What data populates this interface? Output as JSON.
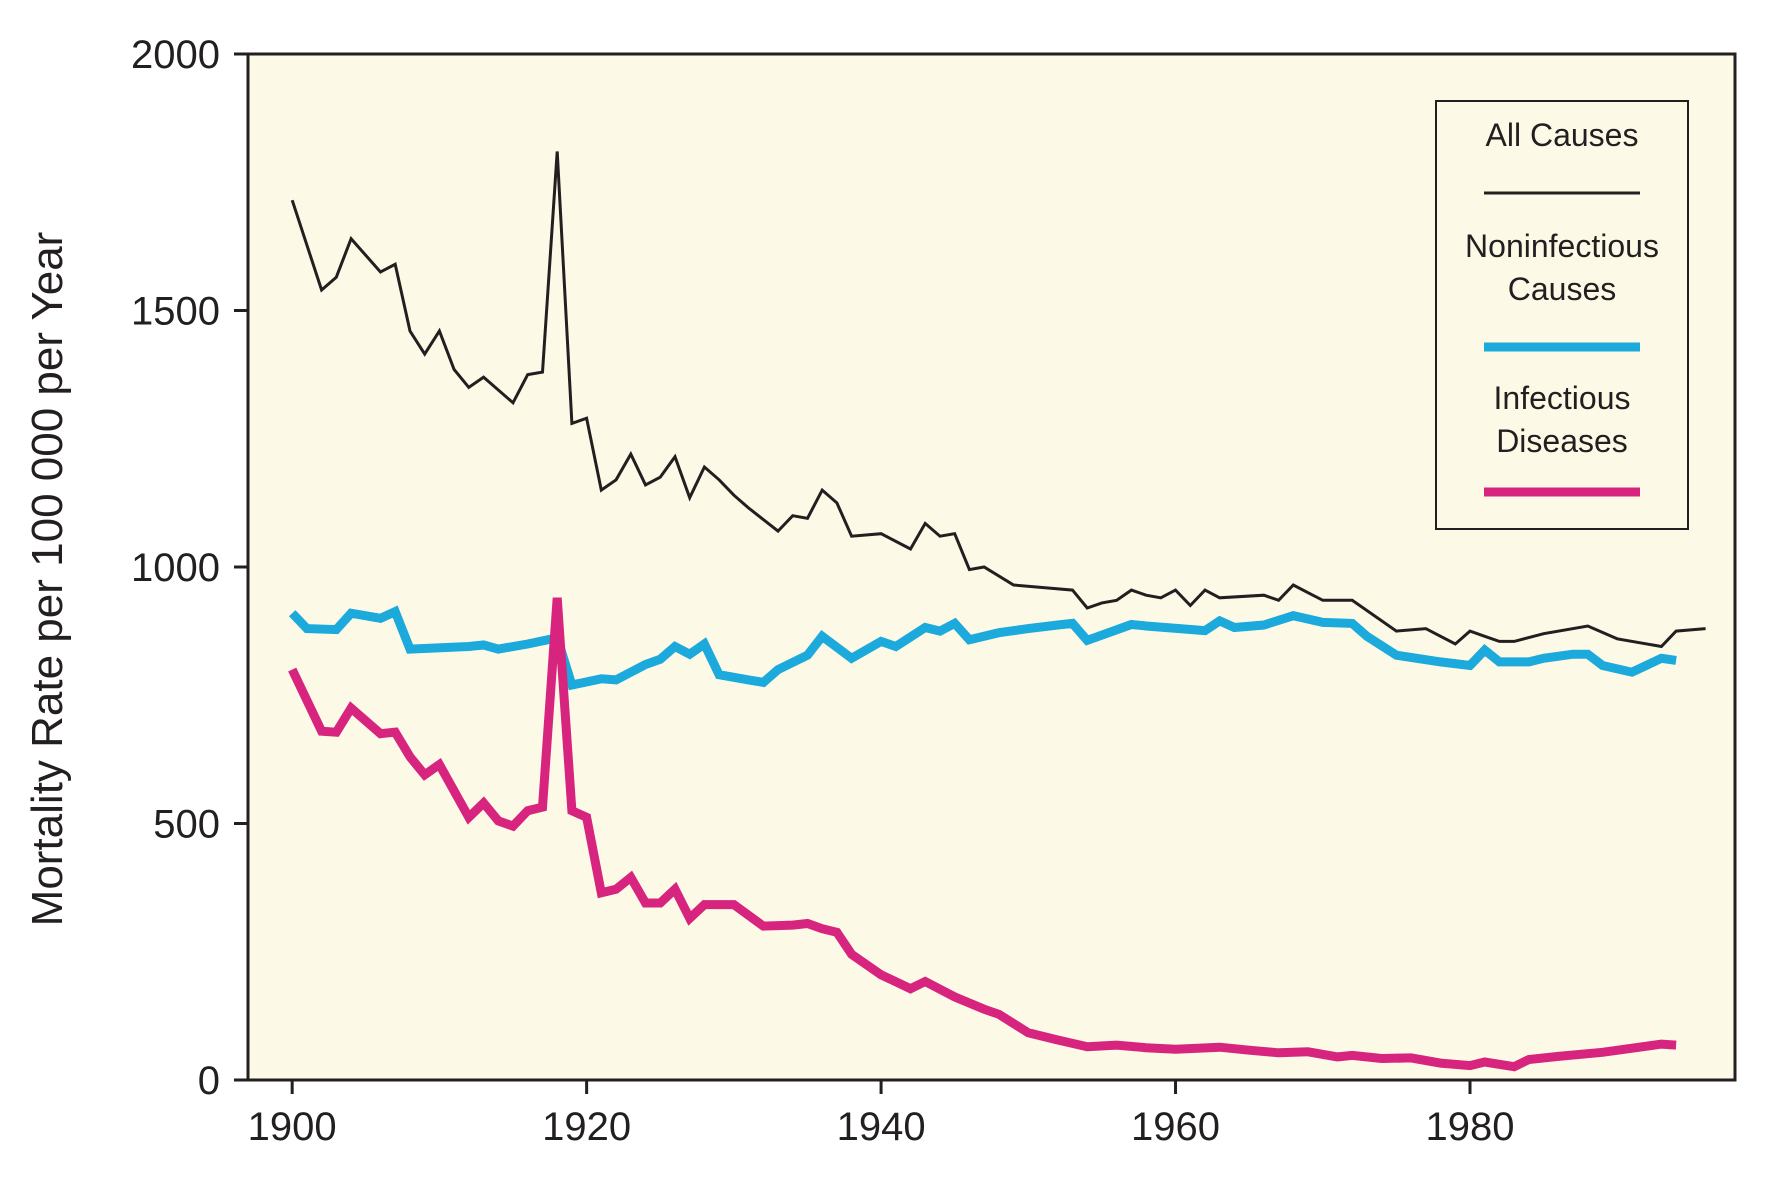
{
  "chart_data": {
    "type": "line",
    "title": "",
    "xlabel": "",
    "ylabel": "Mortality Rate per 100 000 per Year",
    "xlim": [
      1897,
      1998
    ],
    "ylim": [
      0,
      2000
    ],
    "xticks": [
      1900,
      1920,
      1940,
      1960,
      1980
    ],
    "yticks": [
      0,
      500,
      1000,
      1500,
      2000
    ],
    "background_color": "#fcfae6",
    "grid": false,
    "legend_placement": "top-right",
    "series": [
      {
        "name": "All Causes",
        "color": "#231f20",
        "points": [
          [
            1900,
            1715
          ],
          [
            1902,
            1540
          ],
          [
            1903,
            1565
          ],
          [
            1904,
            1640
          ],
          [
            1906,
            1575
          ],
          [
            1907,
            1590
          ],
          [
            1908,
            1460
          ],
          [
            1909,
            1415
          ],
          [
            1910,
            1460
          ],
          [
            1911,
            1385
          ],
          [
            1912,
            1350
          ],
          [
            1913,
            1370
          ],
          [
            1915,
            1320
          ],
          [
            1916,
            1375
          ],
          [
            1917,
            1380
          ],
          [
            1918,
            1810
          ],
          [
            1919,
            1280
          ],
          [
            1920,
            1290
          ],
          [
            1921,
            1150
          ],
          [
            1922,
            1170
          ],
          [
            1923,
            1220
          ],
          [
            1924,
            1160
          ],
          [
            1925,
            1175
          ],
          [
            1926,
            1215
          ],
          [
            1927,
            1135
          ],
          [
            1928,
            1195
          ],
          [
            1929,
            1170
          ],
          [
            1930,
            1140
          ],
          [
            1931,
            1115
          ],
          [
            1933,
            1070
          ],
          [
            1934,
            1100
          ],
          [
            1935,
            1095
          ],
          [
            1936,
            1150
          ],
          [
            1937,
            1125
          ],
          [
            1938,
            1060
          ],
          [
            1940,
            1065
          ],
          [
            1942,
            1035
          ],
          [
            1943,
            1085
          ],
          [
            1944,
            1060
          ],
          [
            1945,
            1065
          ],
          [
            1946,
            995
          ],
          [
            1947,
            1000
          ],
          [
            1949,
            965
          ],
          [
            1953,
            955
          ],
          [
            1954,
            920
          ],
          [
            1955,
            930
          ],
          [
            1956,
            935
          ],
          [
            1957,
            955
          ],
          [
            1958,
            945
          ],
          [
            1959,
            940
          ],
          [
            1960,
            955
          ],
          [
            1961,
            925
          ],
          [
            1962,
            955
          ],
          [
            1963,
            940
          ],
          [
            1966,
            945
          ],
          [
            1967,
            935
          ],
          [
            1968,
            965
          ],
          [
            1969,
            950
          ],
          [
            1970,
            935
          ],
          [
            1972,
            935
          ],
          [
            1975,
            875
          ],
          [
            1977,
            880
          ],
          [
            1979,
            850
          ],
          [
            1980,
            875
          ],
          [
            1981,
            865
          ],
          [
            1982,
            855
          ],
          [
            1983,
            855
          ],
          [
            1985,
            870
          ],
          [
            1988,
            885
          ],
          [
            1990,
            860
          ],
          [
            1993,
            845
          ],
          [
            1994,
            875
          ],
          [
            1996,
            880
          ]
        ]
      },
      {
        "name": "Noninfectious Causes",
        "color": "#1ca9dc",
        "points": [
          [
            1900,
            910
          ],
          [
            1901,
            880
          ],
          [
            1903,
            878
          ],
          [
            1904,
            910
          ],
          [
            1906,
            900
          ],
          [
            1907,
            913
          ],
          [
            1908,
            840
          ],
          [
            1912,
            845
          ],
          [
            1913,
            848
          ],
          [
            1914,
            840
          ],
          [
            1916,
            850
          ],
          [
            1918,
            862
          ],
          [
            1919,
            770
          ],
          [
            1921,
            782
          ],
          [
            1922,
            780
          ],
          [
            1924,
            810
          ],
          [
            1925,
            820
          ],
          [
            1926,
            845
          ],
          [
            1927,
            830
          ],
          [
            1928,
            850
          ],
          [
            1929,
            790
          ],
          [
            1931,
            780
          ],
          [
            1932,
            775
          ],
          [
            1933,
            800
          ],
          [
            1935,
            828
          ],
          [
            1936,
            865
          ],
          [
            1938,
            822
          ],
          [
            1940,
            855
          ],
          [
            1941,
            845
          ],
          [
            1943,
            882
          ],
          [
            1944,
            875
          ],
          [
            1945,
            890
          ],
          [
            1946,
            858
          ],
          [
            1948,
            872
          ],
          [
            1950,
            880
          ],
          [
            1952,
            887
          ],
          [
            1953,
            890
          ],
          [
            1954,
            857
          ],
          [
            1957,
            888
          ],
          [
            1958,
            885
          ],
          [
            1962,
            876
          ],
          [
            1963,
            895
          ],
          [
            1964,
            882
          ],
          [
            1966,
            887
          ],
          [
            1968,
            905
          ],
          [
            1970,
            892
          ],
          [
            1972,
            890
          ],
          [
            1973,
            865
          ],
          [
            1975,
            828
          ],
          [
            1978,
            815
          ],
          [
            1980,
            808
          ],
          [
            1981,
            838
          ],
          [
            1982,
            815
          ],
          [
            1984,
            815
          ],
          [
            1985,
            822
          ],
          [
            1987,
            830
          ],
          [
            1988,
            830
          ],
          [
            1989,
            808
          ],
          [
            1991,
            795
          ],
          [
            1993,
            822
          ],
          [
            1994,
            818
          ]
        ]
      },
      {
        "name": "Infectious Diseases",
        "color": "#d6247f",
        "points": [
          [
            1900,
            800
          ],
          [
            1902,
            680
          ],
          [
            1903,
            678
          ],
          [
            1904,
            725
          ],
          [
            1906,
            675
          ],
          [
            1907,
            678
          ],
          [
            1908,
            630
          ],
          [
            1909,
            595
          ],
          [
            1910,
            615
          ],
          [
            1912,
            512
          ],
          [
            1913,
            540
          ],
          [
            1914,
            505
          ],
          [
            1915,
            495
          ],
          [
            1916,
            525
          ],
          [
            1917,
            532
          ],
          [
            1918,
            940
          ],
          [
            1919,
            525
          ],
          [
            1920,
            512
          ],
          [
            1921,
            365
          ],
          [
            1922,
            372
          ],
          [
            1923,
            395
          ],
          [
            1924,
            345
          ],
          [
            1925,
            345
          ],
          [
            1926,
            372
          ],
          [
            1927,
            315
          ],
          [
            1928,
            342
          ],
          [
            1930,
            342
          ],
          [
            1932,
            300
          ],
          [
            1934,
            302
          ],
          [
            1935,
            305
          ],
          [
            1936,
            295
          ],
          [
            1937,
            288
          ],
          [
            1938,
            245
          ],
          [
            1940,
            205
          ],
          [
            1942,
            178
          ],
          [
            1943,
            192
          ],
          [
            1945,
            162
          ],
          [
            1947,
            138
          ],
          [
            1948,
            128
          ],
          [
            1950,
            92
          ],
          [
            1952,
            78
          ],
          [
            1954,
            65
          ],
          [
            1956,
            68
          ],
          [
            1958,
            63
          ],
          [
            1960,
            60
          ],
          [
            1963,
            64
          ],
          [
            1965,
            58
          ],
          [
            1967,
            53
          ],
          [
            1969,
            55
          ],
          [
            1971,
            45
          ],
          [
            1972,
            48
          ],
          [
            1974,
            42
          ],
          [
            1976,
            43
          ],
          [
            1978,
            33
          ],
          [
            1980,
            28
          ],
          [
            1981,
            35
          ],
          [
            1983,
            26
          ],
          [
            1984,
            40
          ],
          [
            1986,
            46
          ],
          [
            1989,
            54
          ],
          [
            1993,
            70
          ],
          [
            1994,
            68
          ]
        ]
      }
    ]
  }
}
